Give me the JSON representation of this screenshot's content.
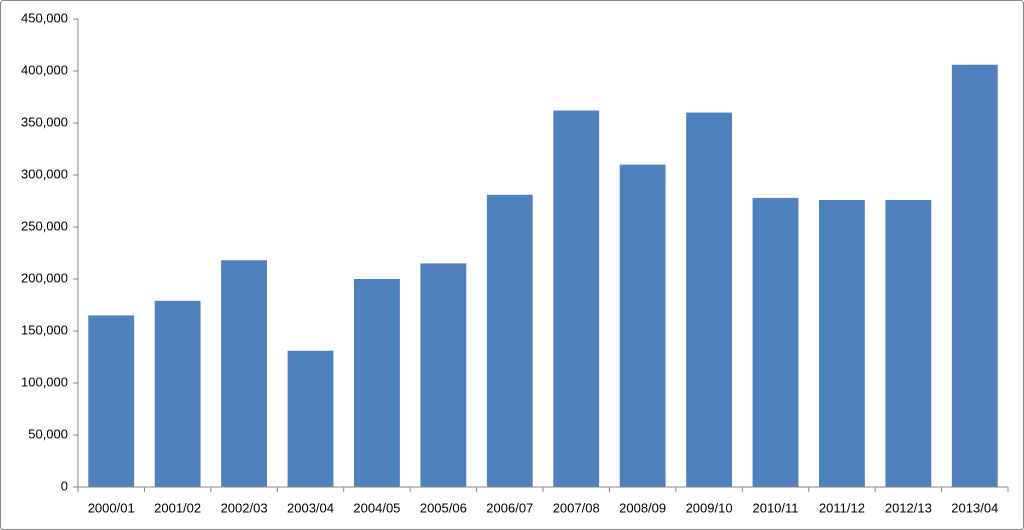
{
  "chart_data": {
    "type": "bar",
    "categories": [
      "2000/01",
      "2001/02",
      "2002/03",
      "2003/04",
      "2004/05",
      "2005/06",
      "2006/07",
      "2007/08",
      "2008/09",
      "2009/10",
      "2010/11",
      "2011/12",
      "2012/13",
      "2013/04"
    ],
    "values": [
      165000,
      179000,
      218000,
      131000,
      200000,
      215000,
      281000,
      362000,
      310000,
      360000,
      278000,
      276000,
      276000,
      406000
    ],
    "color": "#4f81bd",
    "ylim": [
      0,
      450000
    ],
    "yticks": [
      0,
      {
        "value": 50000,
        "label": "50,000"
      },
      {
        "value": 100000,
        "label": "100,000"
      },
      {
        "value": 150000,
        "label": "150,000"
      },
      {
        "value": 200000,
        "label": "200,000"
      },
      {
        "value": 250000,
        "label": "250,000"
      },
      {
        "value": 300000,
        "label": "300,000"
      },
      {
        "value": 350000,
        "label": "350,000"
      },
      {
        "value": 400000,
        "label": "400,000"
      },
      {
        "value": 450000,
        "label": "450,000"
      }
    ],
    "grid": false
  }
}
